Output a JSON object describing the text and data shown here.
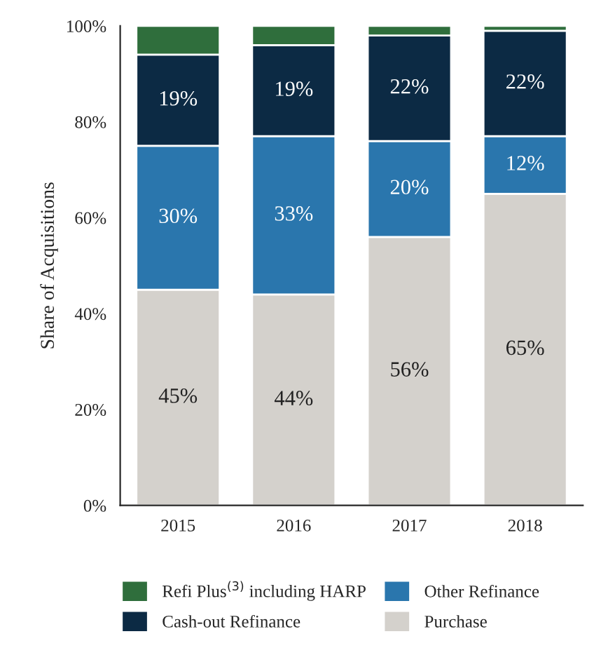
{
  "chart_data": {
    "type": "bar",
    "stacked": true,
    "ylabel": "Share of Acquisitions",
    "categories": [
      "2015",
      "2016",
      "2017",
      "2018"
    ],
    "series": [
      {
        "name": "Purchase",
        "color": "#d4d1cc",
        "values": [
          45,
          44,
          56,
          65
        ],
        "value_labels": [
          "45%",
          "44%",
          "56%",
          "65%"
        ]
      },
      {
        "name": "Other Refinance",
        "color": "#2a76ad",
        "values": [
          30,
          33,
          20,
          12
        ],
        "value_labels": [
          "30%",
          "33%",
          "20%",
          "12%"
        ]
      },
      {
        "name": "Cash-out Refinance",
        "color": "#0c2a44",
        "values": [
          19,
          19,
          22,
          22
        ],
        "value_labels": [
          "19%",
          "19%",
          "22%",
          "22%"
        ]
      },
      {
        "name": "Refi Plus$^{(3)}$ including HARP",
        "color": "#2f6e3c",
        "values": [
          6,
          4,
          2,
          1
        ]
      }
    ],
    "ylim": [
      0,
      100
    ],
    "yticks": [
      {
        "value": 0,
        "label": "0%"
      },
      {
        "value": 20,
        "label": "20%"
      },
      {
        "value": 40,
        "label": "40%"
      },
      {
        "value": 60,
        "label": "60%"
      },
      {
        "value": 80,
        "label": "80%"
      },
      {
        "value": 100,
        "label": "100%"
      }
    ],
    "grid": false,
    "legend": "bottom"
  }
}
